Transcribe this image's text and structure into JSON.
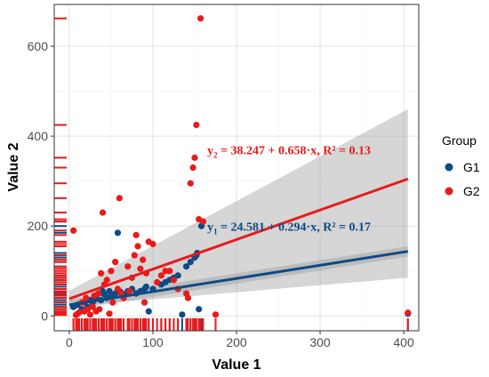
{
  "chart_data": {
    "type": "scatter",
    "xlabel": "Value 1",
    "ylabel": "Value 2",
    "xlim": [
      -18,
      418
    ],
    "ylim": [
      -33,
      693
    ],
    "x_ticks": [
      0,
      100,
      200,
      300,
      400
    ],
    "y_ticks": [
      0,
      200,
      400,
      600
    ],
    "grid": true,
    "legend": {
      "title": "Group",
      "placement": "right",
      "entries": [
        {
          "name": "G1",
          "color": "#0e4a84"
        },
        {
          "name": "G2",
          "color": "#e91a1a"
        }
      ]
    },
    "series": [
      {
        "name": "G1",
        "color": "#0e4a84",
        "points": [
          [
            5,
            20
          ],
          [
            10,
            25
          ],
          [
            15,
            15
          ],
          [
            18,
            30
          ],
          [
            22,
            20
          ],
          [
            25,
            35
          ],
          [
            28,
            30
          ],
          [
            30,
            45
          ],
          [
            32,
            40
          ],
          [
            35,
            50
          ],
          [
            38,
            35
          ],
          [
            40,
            55
          ],
          [
            42,
            48
          ],
          [
            45,
            40
          ],
          [
            48,
            55
          ],
          [
            50,
            45
          ],
          [
            55,
            50
          ],
          [
            58,
            185
          ],
          [
            60,
            55
          ],
          [
            62,
            52
          ],
          [
            65,
            48
          ],
          [
            70,
            55
          ],
          [
            75,
            60
          ],
          [
            80,
            50
          ],
          [
            85,
            55
          ],
          [
            90,
            60
          ],
          [
            92,
            65
          ],
          [
            95,
            10
          ],
          [
            100,
            60
          ],
          [
            110,
            70
          ],
          [
            115,
            75
          ],
          [
            120,
            80
          ],
          [
            125,
            85
          ],
          [
            130,
            90
          ],
          [
            135,
            3
          ],
          [
            140,
            110
          ],
          [
            145,
            120
          ],
          [
            150,
            130
          ],
          [
            152,
            135
          ],
          [
            153,
            140
          ],
          [
            155,
            15
          ],
          [
            158,
            200
          ],
          [
            160,
            210
          ],
          [
            405,
            5
          ]
        ]
      },
      {
        "name": "G2",
        "color": "#e91a1a",
        "points": [
          [
            5,
            190
          ],
          [
            8,
            2
          ],
          [
            10,
            5
          ],
          [
            12,
            8
          ],
          [
            15,
            30
          ],
          [
            18,
            10
          ],
          [
            20,
            40
          ],
          [
            22,
            15
          ],
          [
            25,
            3
          ],
          [
            28,
            20
          ],
          [
            30,
            45
          ],
          [
            32,
            10
          ],
          [
            35,
            50
          ],
          [
            36,
            15
          ],
          [
            38,
            95
          ],
          [
            40,
            230
          ],
          [
            42,
            70
          ],
          [
            45,
            80
          ],
          [
            48,
            5
          ],
          [
            50,
            100
          ],
          [
            52,
            30
          ],
          [
            55,
            120
          ],
          [
            58,
            60
          ],
          [
            60,
            262
          ],
          [
            62,
            50
          ],
          [
            65,
            40
          ],
          [
            70,
            110
          ],
          [
            72,
            55
          ],
          [
            75,
            85
          ],
          [
            78,
            135
          ],
          [
            80,
            180
          ],
          [
            82,
            155
          ],
          [
            85,
            105
          ],
          [
            88,
            125
          ],
          [
            90,
            30
          ],
          [
            92,
            95
          ],
          [
            95,
            165
          ],
          [
            100,
            160
          ],
          [
            105,
            75
          ],
          [
            110,
            90
          ],
          [
            115,
            100
          ],
          [
            120,
            100
          ],
          [
            125,
            80
          ],
          [
            130,
            60
          ],
          [
            140,
            50
          ],
          [
            142,
            40
          ],
          [
            145,
            295
          ],
          [
            148,
            330
          ],
          [
            150,
            352
          ],
          [
            152,
            425
          ],
          [
            155,
            215
          ],
          [
            157,
            662
          ],
          [
            160,
            210
          ],
          [
            175,
            3
          ],
          [
            405,
            7
          ]
        ]
      }
    ],
    "regression": [
      {
        "series": "G1",
        "intercept": 24.581,
        "slope": 0.294,
        "x_range": [
          0,
          405
        ],
        "ci_upper": [
          36,
          155
        ],
        "ci_lower": [
          13,
          132
        ]
      },
      {
        "series": "G2",
        "intercept": 38.247,
        "slope": 0.658,
        "x_range": [
          0,
          405
        ],
        "ci_upper": [
          56,
          460
        ],
        "ci_lower": [
          21,
          85
        ]
      }
    ],
    "annotations": [
      {
        "series": "G2",
        "lhs": "y",
        "sub": "2",
        "text": " = 38.247 + 0.658·x, R² = 0.13",
        "color": "#e91a1a",
        "x": 165,
        "y": 360
      },
      {
        "series": "G1",
        "lhs": "y",
        "sub": "1",
        "text": " = 24.581 + 0.294·x, R² = 0.17",
        "color": "#0e4a84",
        "x": 165,
        "y": 190
      }
    ],
    "rug": {
      "G1_x": [
        5,
        10,
        15,
        22,
        25,
        30,
        35,
        40,
        45,
        50,
        55,
        60,
        65,
        70,
        75,
        80,
        85,
        90,
        95,
        100,
        110,
        115,
        120,
        125,
        130,
        135,
        140,
        145,
        150,
        155,
        158,
        405
      ],
      "G2_x": [
        5,
        8,
        10,
        12,
        15,
        18,
        20,
        22,
        25,
        28,
        30,
        32,
        35,
        38,
        40,
        42,
        45,
        48,
        50,
        52,
        55,
        58,
        60,
        62,
        65,
        70,
        72,
        75,
        78,
        80,
        82,
        85,
        88,
        90,
        92,
        95,
        100,
        105,
        110,
        115,
        120,
        125,
        130,
        140,
        142,
        145,
        148,
        150,
        152,
        155,
        157,
        160,
        175,
        405
      ],
      "G1_y": [
        3,
        5,
        10,
        15,
        20,
        25,
        30,
        35,
        40,
        45,
        48,
        50,
        52,
        55,
        60,
        65,
        70,
        75,
        80,
        85,
        90,
        110,
        120,
        130,
        135,
        140,
        185,
        200,
        210
      ],
      "G2_y": [
        2,
        3,
        5,
        7,
        8,
        10,
        15,
        20,
        30,
        40,
        45,
        50,
        55,
        60,
        70,
        75,
        80,
        85,
        90,
        95,
        100,
        105,
        110,
        120,
        125,
        135,
        155,
        160,
        165,
        180,
        190,
        210,
        215,
        230,
        262,
        295,
        330,
        352,
        425,
        662
      ]
    }
  }
}
